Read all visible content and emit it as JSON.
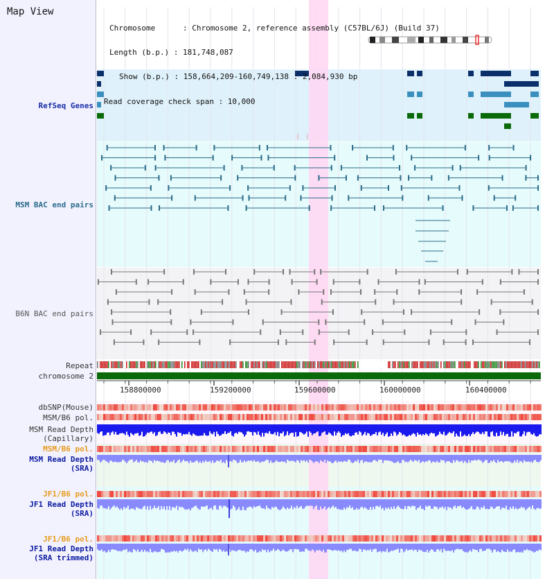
{
  "title": "Map View",
  "info": {
    "chromosome": "Chromosome      : Chromosome 2, reference assembly (C57BL/6J) (Build 37)",
    "length": "Length (b.p.) : 181,748,087",
    "show": "Show (b.p.) : 158,664,209-160,749,138 : 2,084,930 bp",
    "coverage": "Read coverage check span : 10,000"
  },
  "tracks": {
    "refseq": "RefSeq Genes",
    "msm_bac": "MSM BAC end pairs",
    "b6n_bac": "B6N BAC end pairs",
    "repeat": "Repeat",
    "chromosome": "chromosome 2",
    "dbsnp": "dbSNP(Mouse)",
    "msm_b6_pol_1": "MSM/B6 pol.",
    "msm_depth_cap_1": "MSM Read Depth",
    "msm_depth_cap_2": "(Capillary)",
    "msm_b6_pol_2": "MSM/B6 pol.",
    "msm_depth_sra_1": "MSM Read Depth",
    "msm_depth_sra_2": "(SRA)",
    "jf1_b6_pol_1": "JF1/B6 pol.",
    "jf1_depth_sra_1": "JF1 Read Depth",
    "jf1_depth_sra_2": "(SRA)",
    "jf1_b6_pol_2": "JF1/B6 pol.",
    "jf1_depth_trim_1": "JF1 Read Depth",
    "jf1_depth_trim_2": "(SRA trimmed)"
  },
  "axis": {
    "ticks": [
      "158800000",
      "159200000",
      "159600000",
      "160000000",
      "160400000"
    ]
  },
  "colors": {
    "refseq_dark": "#0a2f6b",
    "refseq_mid": "#3b8fbf",
    "refseq_green": "#0a6a0a",
    "msm_bac": "#2b6b8a",
    "b6n_bac": "#777777",
    "highlight": "#ffd6f2",
    "depth_blue": "#1a1aee",
    "depth_light": "#8a8aff"
  }
}
